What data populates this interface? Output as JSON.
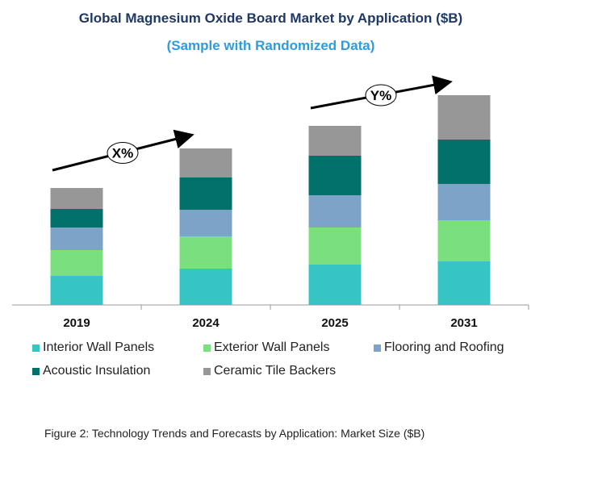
{
  "chart_data": {
    "type": "bar",
    "stacked": true,
    "title": "Global Magnesium Oxide Board Market by Application ($B)",
    "subtitle": "(Sample with Randomized Data)",
    "categories": [
      "2019",
      "2024",
      "2025",
      "2031"
    ],
    "series": [
      {
        "name": "Interior Wall Panels",
        "color": "#36c5c4",
        "values": [
          0.36,
          0.45,
          0.5,
          0.54
        ]
      },
      {
        "name": "Exterior Wall Panels",
        "color": "#79e07d",
        "values": [
          0.32,
          0.4,
          0.46,
          0.51
        ]
      },
      {
        "name": "Flooring and Roofing",
        "color": "#7ea3c8",
        "values": [
          0.28,
          0.33,
          0.4,
          0.45
        ]
      },
      {
        "name": "Acoustic Insulation",
        "color": "#02716b",
        "values": [
          0.23,
          0.4,
          0.49,
          0.55
        ]
      },
      {
        "name": "Ceramic Tile Backers",
        "color": "#979797",
        "values": [
          0.26,
          0.36,
          0.37,
          0.55
        ]
      }
    ],
    "ylim": [
      0,
      2.8
    ],
    "grid": false,
    "legend_position": "bottom",
    "annotations": [
      {
        "text": "X%",
        "from": "2019",
        "to": "2024"
      },
      {
        "text": "Y%",
        "from": "2025",
        "to": "2031"
      }
    ]
  },
  "caption": "Figure 2: Technology  Trends  and Forecasts by Application: Market Size ($B)"
}
